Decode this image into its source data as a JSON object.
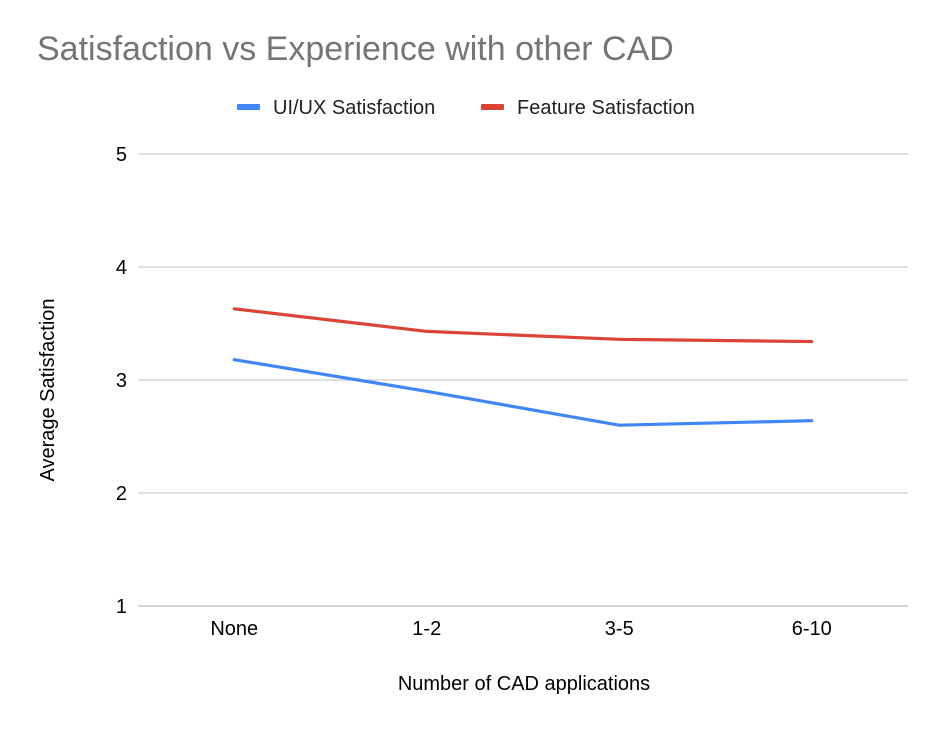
{
  "chart_data": {
    "type": "line",
    "title": "Satisfaction vs Experience with other CAD",
    "xlabel": "Number of CAD applications",
    "ylabel": "Average Satisfaction",
    "categories": [
      "None",
      "1-2",
      "3-5",
      "6-10"
    ],
    "ylim": [
      1,
      5
    ],
    "yticks": [
      1,
      2,
      3,
      4,
      5
    ],
    "grid": true,
    "legend_position": "top",
    "series": [
      {
        "name": "UI/UX Satisfaction",
        "color": "#4285F4",
        "values": [
          3.18,
          2.9,
          2.6,
          2.64
        ]
      },
      {
        "name": "Feature Satisfaction",
        "color": "#DB4437",
        "values": [
          3.63,
          3.43,
          3.36,
          3.34
        ]
      }
    ]
  }
}
